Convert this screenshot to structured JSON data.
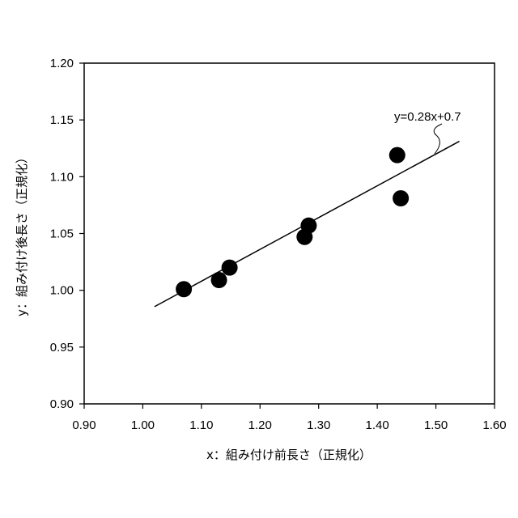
{
  "chart_data": {
    "type": "scatter",
    "xlabel": "x：組み付け前長さ（正規化）",
    "ylabel": "y：組み付け後長さ（正規化）",
    "xlim": [
      0.9,
      1.6
    ],
    "ylim": [
      0.9,
      1.2
    ],
    "xticks": [
      "0.90",
      "1.00",
      "1.10",
      "1.20",
      "1.30",
      "1.40",
      "1.50",
      "1.60"
    ],
    "yticks": [
      "0.90",
      "0.95",
      "1.00",
      "1.05",
      "1.10",
      "1.15",
      "1.20"
    ],
    "series": [
      {
        "points": [
          {
            "x": 1.07,
            "y": 1.001
          },
          {
            "x": 1.13,
            "y": 1.009
          },
          {
            "x": 1.148,
            "y": 1.02
          },
          {
            "x": 1.276,
            "y": 1.047
          },
          {
            "x": 1.283,
            "y": 1.057
          },
          {
            "x": 1.434,
            "y": 1.119
          },
          {
            "x": 1.44,
            "y": 1.081
          }
        ],
        "color": "#000000"
      }
    ],
    "fit_line": {
      "label": "y=0.28x+0.7",
      "slope": 0.28,
      "intercept": 0.7,
      "x_range": [
        1.02,
        1.54
      ]
    },
    "grid": false,
    "legend": "none"
  }
}
